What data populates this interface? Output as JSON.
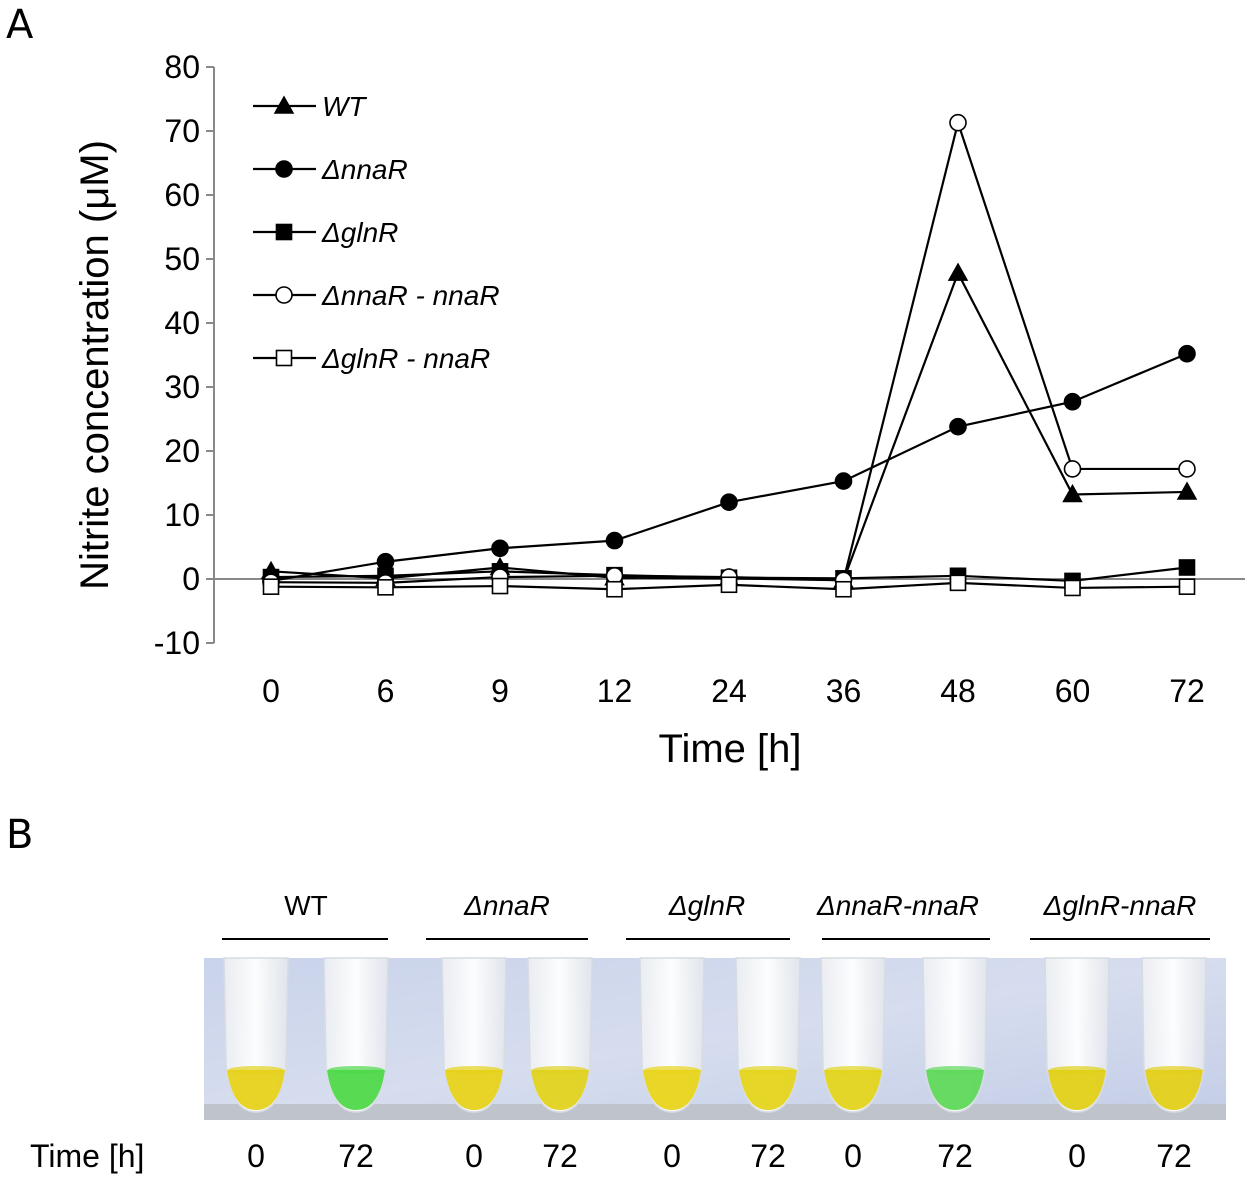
{
  "panel_a_label": "A",
  "panel_b_label": "B",
  "chart_data": {
    "type": "line",
    "xlabel": "Time [h]",
    "ylabel": "Nitrite concentration (μM)",
    "categories": [
      "0",
      "6",
      "9",
      "12",
      "24",
      "36",
      "48",
      "60",
      "72"
    ],
    "ylim": [
      -10,
      80
    ],
    "yticks": [
      -10,
      0,
      10,
      20,
      30,
      40,
      50,
      60,
      70,
      80
    ],
    "legend_position": "top-left",
    "series": [
      {
        "name": "WT",
        "marker": "triangle-filled",
        "values": [
          1.2,
          0.1,
          1.8,
          0.2,
          0.1,
          -0.2,
          47.8,
          13.2,
          13.6
        ]
      },
      {
        "name": "ΔnnaR",
        "marker": "circle-filled",
        "values": [
          -0.3,
          2.7,
          4.8,
          6.0,
          12.0,
          15.3,
          23.8,
          27.7,
          35.2
        ]
      },
      {
        "name": "ΔglnR",
        "marker": "square-filled",
        "values": [
          0.3,
          0.5,
          1.2,
          0.6,
          0.2,
          0.1,
          0.5,
          -0.3,
          1.8
        ]
      },
      {
        "name": "ΔnnaR - nnaR",
        "marker": "circle-open",
        "values": [
          -0.5,
          -0.6,
          0.3,
          0.5,
          0.3,
          -0.2,
          71.3,
          17.2,
          17.2
        ]
      },
      {
        "name": "ΔglnR - nnaR",
        "marker": "square-open",
        "values": [
          -1.2,
          -1.3,
          -1.1,
          -1.6,
          -0.9,
          -1.6,
          -0.6,
          -1.4,
          -1.2
        ]
      }
    ]
  },
  "panel_b": {
    "groups": [
      {
        "label": "WT",
        "italic": false
      },
      {
        "label": "ΔnnaR",
        "italic": true
      },
      {
        "label": "ΔglnR",
        "italic": true
      },
      {
        "label": "ΔnnaR-nnaR",
        "italic": true
      },
      {
        "label": "ΔglnR-nnaR",
        "italic": true
      }
    ],
    "time_label": "Time [h]",
    "times": [
      "0",
      "72",
      "0",
      "72",
      "0",
      "72",
      "0",
      "72",
      "0",
      "72"
    ],
    "tube_colors": [
      "#e6d21a",
      "#4fd84a",
      "#e6d21a",
      "#e0d21e",
      "#e8d41a",
      "#e4d41c",
      "#e2d41c",
      "#5ed85a",
      "#e0d018",
      "#e2cf1a"
    ]
  }
}
